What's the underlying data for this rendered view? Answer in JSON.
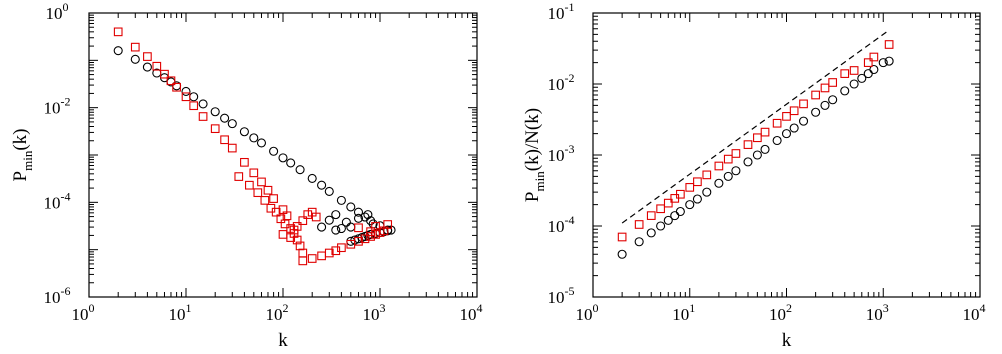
{
  "chart_data": [
    {
      "type": "scatter",
      "title": "",
      "xlabel": "k",
      "ylabel": {
        "main": "P",
        "sub": "min",
        "rest": "(k)"
      },
      "xscale": "log",
      "yscale": "log",
      "xlim": [
        1,
        10000
      ],
      "ylim": [
        1e-06,
        1
      ],
      "xtick_labels": [
        {
          "base": "10",
          "exp": "0"
        },
        {
          "base": "10",
          "exp": "1"
        },
        {
          "base": "10",
          "exp": "2"
        },
        {
          "base": "10",
          "exp": "3"
        },
        {
          "base": "10",
          "exp": "4"
        }
      ],
      "ytick_labels": [
        {
          "base": "10",
          "exp": "0"
        },
        {
          "base": "10",
          "exp": "-2"
        },
        {
          "base": "10",
          "exp": "-4"
        },
        {
          "base": "10",
          "exp": "-6"
        }
      ],
      "grid": false,
      "legend": "none",
      "series": [
        {
          "marker": "circle",
          "color": "#000000",
          "points": [
            [
              2,
              0.16
            ],
            [
              3,
              0.105
            ],
            [
              4,
              0.072
            ],
            [
              5,
              0.054
            ],
            [
              6,
              0.043
            ],
            [
              7,
              0.035
            ],
            [
              8,
              0.029
            ],
            [
              10,
              0.022
            ],
            [
              12,
              0.017
            ],
            [
              15,
              0.012
            ],
            [
              20,
              0.0082
            ],
            [
              25,
              0.006
            ],
            [
              30,
              0.0046
            ],
            [
              40,
              0.0031
            ],
            [
              50,
              0.0023
            ],
            [
              60,
              0.0018
            ],
            [
              80,
              0.0012
            ],
            [
              100,
              0.00087
            ],
            [
              120,
              0.00068
            ],
            [
              150,
              0.00049
            ],
            [
              200,
              0.00032
            ],
            [
              250,
              0.00023
            ],
            [
              300,
              0.00017
            ],
            [
              400,
              0.00011
            ],
            [
              500,
              8e-05
            ],
            [
              600,
              6.2e-05
            ],
            [
              700,
              4.9e-05
            ],
            [
              800,
              4.1e-05
            ],
            [
              1000,
              3.2e-05
            ],
            [
              1200,
              2.6e-05
            ],
            [
              250,
              3e-05
            ],
            [
              300,
              4.2e-05
            ],
            [
              350,
              5.5e-05
            ],
            [
              450,
              3.8e-05
            ],
            [
              500,
              3e-05
            ],
            [
              600,
              4.6e-05
            ],
            [
              750,
              5.5e-05
            ],
            [
              850,
              3.5e-05
            ],
            [
              350,
              2.6e-05
            ],
            [
              400,
              2.8e-05
            ],
            [
              500,
              1.5e-05
            ],
            [
              550,
              1.6e-05
            ],
            [
              600,
              1.7e-05
            ],
            [
              650,
              1.8e-05
            ],
            [
              700,
              1.9e-05
            ],
            [
              750,
              2e-05
            ],
            [
              800,
              2.1e-05
            ],
            [
              900,
              2.2e-05
            ],
            [
              1000,
              2.3e-05
            ],
            [
              1100,
              2.4e-05
            ],
            [
              1200,
              2.5e-05
            ],
            [
              1300,
              2.6e-05
            ]
          ]
        },
        {
          "marker": "square",
          "color": "#e00000",
          "points": [
            [
              2,
              0.4
            ],
            [
              3,
              0.19
            ],
            [
              4,
              0.12
            ],
            [
              5,
              0.075
            ],
            [
              6,
              0.051
            ],
            [
              7,
              0.037
            ],
            [
              8,
              0.027
            ],
            [
              10,
              0.017
            ],
            [
              12,
              0.011
            ],
            [
              15,
              0.0065
            ],
            [
              20,
              0.0036
            ],
            [
              25,
              0.0021
            ],
            [
              30,
              0.0014
            ],
            [
              40,
              0.0007
            ],
            [
              50,
              0.00042
            ],
            [
              60,
              0.00027
            ],
            [
              70,
              0.00018
            ],
            [
              80,
              0.00012
            ],
            [
              100,
              7e-05
            ],
            [
              110,
              5.2e-05
            ],
            [
              35,
              0.00035
            ],
            [
              45,
              0.00023
            ],
            [
              55,
              0.00016
            ],
            [
              65,
              0.00011
            ],
            [
              75,
              7.5e-05
            ],
            [
              85,
              6.2e-05
            ],
            [
              95,
              4.5e-05
            ],
            [
              105,
              3.5e-05
            ],
            [
              120,
              2.8e-05
            ],
            [
              130,
              2.2e-05
            ],
            [
              140,
              1.6e-05
            ],
            [
              150,
              1.2e-05
            ],
            [
              160,
              8.5e-06
            ],
            [
              100,
              2.1e-05
            ],
            [
              120,
              1.8e-05
            ],
            [
              130,
              2.6e-05
            ],
            [
              140,
              3.1e-05
            ],
            [
              160,
              4.1e-05
            ],
            [
              180,
              5.5e-05
            ],
            [
              200,
              6.2e-05
            ],
            [
              220,
              4.9e-05
            ],
            [
              160,
              5.8e-06
            ],
            [
              200,
              6.5e-06
            ],
            [
              250,
              7.4e-06
            ],
            [
              300,
              8.5e-06
            ],
            [
              350,
              9.5e-06
            ],
            [
              400,
              1.1e-05
            ],
            [
              500,
              1.3e-05
            ],
            [
              600,
              1.5e-05
            ],
            [
              700,
              1.7e-05
            ],
            [
              800,
              1.9e-05
            ],
            [
              900,
              2.1e-05
            ],
            [
              1000,
              2.3e-05
            ],
            [
              1100,
              2.5e-05
            ],
            [
              600,
              2.9e-05
            ],
            [
              800,
              2.4e-05
            ],
            [
              900,
              3.1e-05
            ],
            [
              1200,
              3.4e-05
            ]
          ]
        }
      ]
    },
    {
      "type": "scatter",
      "title": "",
      "xlabel": "k",
      "ylabel": {
        "main": "P",
        "sub": "min",
        "rest": "(k)/N(k)"
      },
      "xscale": "log",
      "yscale": "log",
      "xlim": [
        1,
        10000
      ],
      "ylim": [
        1e-05,
        0.1
      ],
      "xtick_labels": [
        {
          "base": "10",
          "exp": "0"
        },
        {
          "base": "10",
          "exp": "1"
        },
        {
          "base": "10",
          "exp": "2"
        },
        {
          "base": "10",
          "exp": "3"
        },
        {
          "base": "10",
          "exp": "4"
        }
      ],
      "ytick_labels": [
        {
          "base": "10",
          "exp": "-1"
        },
        {
          "base": "10",
          "exp": "-2"
        },
        {
          "base": "10",
          "exp": "-3"
        },
        {
          "base": "10",
          "exp": "-4"
        },
        {
          "base": "10",
          "exp": "-5"
        }
      ],
      "grid": false,
      "legend": "none",
      "reference_line": {
        "style": "dashed",
        "color": "#000000",
        "x": [
          2,
          1100
        ],
        "y": [
          0.00011,
          0.055
        ]
      },
      "series": [
        {
          "marker": "circle",
          "color": "#000000",
          "points": [
            [
              2,
              4e-05
            ],
            [
              3,
              6e-05
            ],
            [
              4,
              8e-05
            ],
            [
              5,
              0.0001
            ],
            [
              6,
              0.00012
            ],
            [
              7,
              0.00014
            ],
            [
              8,
              0.00016
            ],
            [
              10,
              0.0002
            ],
            [
              12,
              0.00024
            ],
            [
              15,
              0.0003
            ],
            [
              20,
              0.0004
            ],
            [
              25,
              0.0005
            ],
            [
              30,
              0.0006
            ],
            [
              40,
              0.0008
            ],
            [
              50,
              0.001
            ],
            [
              60,
              0.0012
            ],
            [
              80,
              0.0016
            ],
            [
              100,
              0.002
            ],
            [
              120,
              0.0024
            ],
            [
              150,
              0.003
            ],
            [
              200,
              0.004
            ],
            [
              250,
              0.005
            ],
            [
              300,
              0.006
            ],
            [
              400,
              0.008
            ],
            [
              500,
              0.01
            ],
            [
              600,
              0.012
            ],
            [
              700,
              0.014
            ],
            [
              800,
              0.016
            ],
            [
              1000,
              0.02
            ],
            [
              1150,
              0.021
            ]
          ]
        },
        {
          "marker": "square",
          "color": "#e00000",
          "points": [
            [
              2,
              7e-05
            ],
            [
              3,
              0.000105
            ],
            [
              4,
              0.00014
            ],
            [
              5,
              0.000175
            ],
            [
              6,
              0.00021
            ],
            [
              7,
              0.000245
            ],
            [
              8,
              0.00028
            ],
            [
              10,
              0.00035
            ],
            [
              12,
              0.00042
            ],
            [
              15,
              0.000525
            ],
            [
              20,
              0.0007
            ],
            [
              25,
              0.000875
            ],
            [
              30,
              0.00105
            ],
            [
              40,
              0.0014
            ],
            [
              50,
              0.00175
            ],
            [
              60,
              0.0021
            ],
            [
              80,
              0.0028
            ],
            [
              100,
              0.0035
            ],
            [
              120,
              0.0042
            ],
            [
              150,
              0.00525
            ],
            [
              200,
              0.007
            ],
            [
              250,
              0.0088
            ],
            [
              300,
              0.0105
            ],
            [
              400,
              0.014
            ],
            [
              500,
              0.0155
            ],
            [
              700,
              0.02
            ],
            [
              800,
              0.024
            ],
            [
              1150,
              0.036
            ]
          ]
        }
      ]
    }
  ]
}
